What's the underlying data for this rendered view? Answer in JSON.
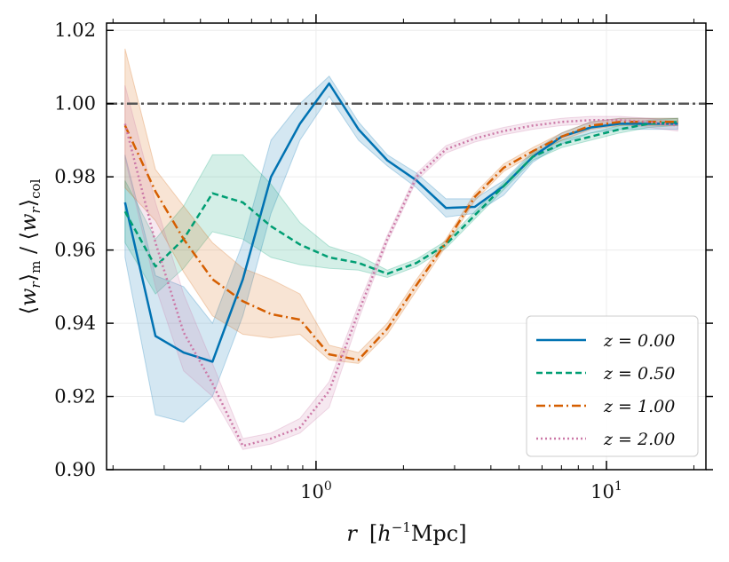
{
  "chart_data": {
    "type": "line",
    "title": "",
    "xlabel": "r  [h^-1 Mpc]",
    "ylabel": "<w_r>_m / <w_r>_col",
    "xscale": "log",
    "xlim": [
      0.19,
      22
    ],
    "ylim": [
      0.9,
      1.022
    ],
    "grid": true,
    "legend_position": "lower-right",
    "x_tick_labels": [
      {
        "value": 1,
        "label": "10^0"
      },
      {
        "value": 10,
        "label": "10^1"
      }
    ],
    "y_tick_labels": [
      "0.90",
      "0.92",
      "0.94",
      "0.96",
      "0.98",
      "1.00",
      "1.02"
    ],
    "y_ticks": [
      0.9,
      0.92,
      0.94,
      0.96,
      0.98,
      1.0,
      1.02
    ],
    "reference_line": {
      "y": 1.0,
      "color": "#555555",
      "style": "dashdot"
    },
    "x": [
      0.22,
      0.28,
      0.35,
      0.44,
      0.56,
      0.7,
      0.88,
      1.11,
      1.4,
      1.76,
      2.22,
      2.8,
      3.52,
      4.43,
      5.58,
      7.02,
      8.84,
      11.13,
      14.0,
      17.6
    ],
    "series": [
      {
        "name": "z = 0.00",
        "color": "#0072b2",
        "style": "solid",
        "values": [
          0.973,
          0.9365,
          0.932,
          0.9295,
          0.952,
          0.98,
          0.9945,
          1.0055,
          0.993,
          0.9845,
          0.979,
          0.9715,
          0.9718,
          0.9775,
          0.9855,
          0.991,
          0.9935,
          0.9945,
          0.9945,
          0.9945
        ],
        "lower": [
          0.958,
          0.915,
          0.913,
          0.92,
          0.942,
          0.97,
          0.99,
          1.002,
          0.99,
          0.983,
          0.977,
          0.969,
          0.97,
          0.975,
          0.984,
          0.989,
          0.992,
          0.993,
          0.993,
          0.993
        ],
        "upper": [
          0.986,
          0.953,
          0.95,
          0.94,
          0.962,
          0.99,
          1.0,
          1.0075,
          0.995,
          0.986,
          0.981,
          0.974,
          0.974,
          0.979,
          0.987,
          0.992,
          0.995,
          0.996,
          0.996,
          0.996
        ]
      },
      {
        "name": "z = 0.50",
        "color": "#009e73",
        "style": "dashed",
        "values": [
          0.9705,
          0.9555,
          0.963,
          0.9755,
          0.973,
          0.9665,
          0.9615,
          0.958,
          0.9565,
          0.9535,
          0.9565,
          0.9615,
          0.9695,
          0.9775,
          0.9855,
          0.989,
          0.991,
          0.993,
          0.9945,
          0.995
        ],
        "lower": [
          0.962,
          0.948,
          0.955,
          0.965,
          0.963,
          0.958,
          0.956,
          0.955,
          0.9545,
          0.9525,
          0.9555,
          0.9605,
          0.9685,
          0.9765,
          0.9845,
          0.988,
          0.99,
          0.992,
          0.9935,
          0.994
        ],
        "upper": [
          0.979,
          0.963,
          0.972,
          0.986,
          0.986,
          0.978,
          0.9675,
          0.961,
          0.9585,
          0.9545,
          0.9575,
          0.9625,
          0.9705,
          0.9785,
          0.9865,
          0.99,
          0.992,
          0.994,
          0.9955,
          0.996
        ]
      },
      {
        "name": "z = 1.00",
        "color": "#d55e00",
        "style": "dashdot",
        "values": [
          0.994,
          0.976,
          0.963,
          0.952,
          0.946,
          0.9425,
          0.941,
          0.9315,
          0.93,
          0.9385,
          0.9505,
          0.962,
          0.9745,
          0.9825,
          0.987,
          0.991,
          0.994,
          0.995,
          0.995,
          0.995
        ],
        "lower": [
          0.977,
          0.968,
          0.954,
          0.942,
          0.937,
          0.936,
          0.937,
          0.93,
          0.929,
          0.937,
          0.949,
          0.961,
          0.9735,
          0.9815,
          0.986,
          0.99,
          0.993,
          0.994,
          0.994,
          0.994
        ],
        "upper": [
          1.015,
          0.982,
          0.972,
          0.962,
          0.955,
          0.952,
          0.948,
          0.934,
          0.932,
          0.94,
          0.952,
          0.963,
          0.9755,
          0.9835,
          0.988,
          0.992,
          0.995,
          0.996,
          0.996,
          0.996
        ]
      },
      {
        "name": "z = 2.00",
        "color": "#cc79a7",
        "style": "dotted",
        "values": [
          0.9945,
          0.962,
          0.9375,
          0.9235,
          0.9065,
          0.9085,
          0.9115,
          0.9215,
          0.943,
          0.963,
          0.98,
          0.9875,
          0.9905,
          0.9925,
          0.994,
          0.995,
          0.9955,
          0.9955,
          0.995,
          0.994
        ],
        "lower": [
          0.985,
          0.95,
          0.927,
          0.92,
          0.9055,
          0.907,
          0.91,
          0.917,
          0.941,
          0.962,
          0.979,
          0.9865,
          0.9895,
          0.9915,
          0.993,
          0.994,
          0.9945,
          0.9945,
          0.9935,
          0.9925
        ],
        "upper": [
          1.005,
          0.973,
          0.948,
          0.929,
          0.9085,
          0.91,
          0.914,
          0.924,
          0.945,
          0.964,
          0.981,
          0.9885,
          0.9915,
          0.9935,
          0.995,
          0.996,
          0.9965,
          0.9965,
          0.996,
          0.995
        ]
      }
    ]
  }
}
